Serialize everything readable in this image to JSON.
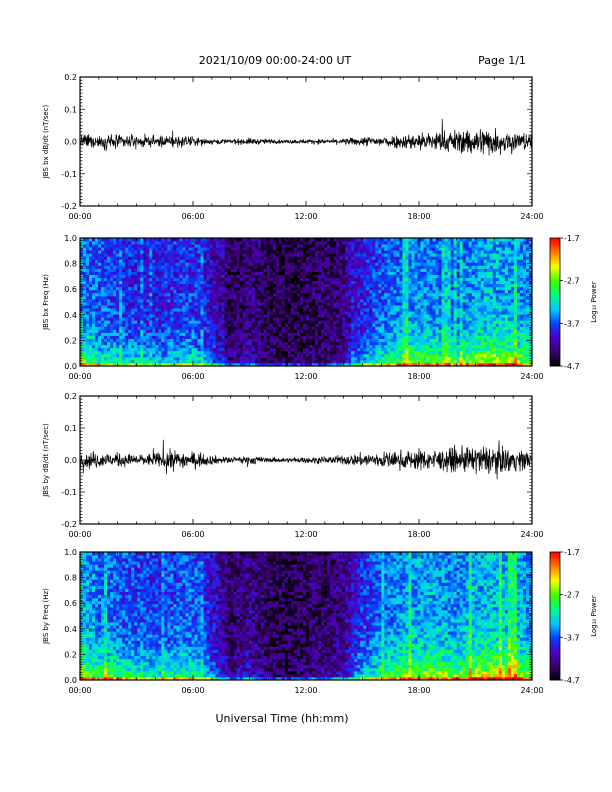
{
  "header": {
    "title": "2021/10/09  00:00-24:00 UT",
    "page": "Page 1/1"
  },
  "xlabel": "Universal Time (hh:mm)",
  "colors": {
    "trace": "#000000",
    "frame": "#000000",
    "colorscale": [
      "#000000",
      "#3a006a",
      "#4b00c8",
      "#0044ff",
      "#00c8ff",
      "#00ff80",
      "#40ff00",
      "#ffff00",
      "#ff8000",
      "#ff0000"
    ]
  },
  "chart_data": [
    {
      "type": "line",
      "ylabel": "JBS bx dB/dt (nT/sec)",
      "xlim": [
        0,
        24
      ],
      "ylim": [
        -0.2,
        0.2
      ],
      "xticks": [
        "00:00",
        "06:00",
        "12:00",
        "18:00",
        "24:00"
      ],
      "yticks": [
        "-0.2",
        "-0.1",
        "0.0",
        "0.1",
        "0.2"
      ],
      "envelope_hours": [
        0,
        1,
        2,
        3,
        4,
        5,
        6,
        7,
        8,
        9,
        10,
        11,
        12,
        13,
        14,
        15,
        16,
        17,
        18,
        19,
        20,
        21,
        22,
        23,
        24
      ],
      "envelope_amplitude": [
        0.012,
        0.012,
        0.012,
        0.01,
        0.009,
        0.012,
        0.008,
        0.005,
        0.004,
        0.006,
        0.004,
        0.003,
        0.004,
        0.004,
        0.005,
        0.008,
        0.01,
        0.012,
        0.016,
        0.018,
        0.02,
        0.026,
        0.024,
        0.018,
        0.014
      ]
    },
    {
      "type": "heatmap",
      "ylabel": "JBS bx Freq (Hz)",
      "xlim": [
        0,
        24
      ],
      "ylim": [
        0.0,
        1.0
      ],
      "xticks": [
        "00:00",
        "06:00",
        "12:00",
        "18:00",
        "24:00"
      ],
      "yticks": [
        "0.0",
        "0.2",
        "0.4",
        "0.6",
        "0.8",
        "1.0"
      ],
      "colorbar": {
        "label": "Log₁₀ Power",
        "min": -4.7,
        "max": -1.7,
        "ticks": [
          "-1.7",
          "-2.7",
          "-3.7",
          "-4.7"
        ]
      },
      "activity_hours": [
        0,
        1,
        2,
        3,
        4,
        5,
        6,
        7,
        8,
        9,
        10,
        11,
        12,
        13,
        14,
        15,
        16,
        17,
        18,
        19,
        20,
        21,
        22,
        23,
        24
      ],
      "activity_level": [
        0.8,
        0.65,
        0.6,
        0.55,
        0.5,
        0.55,
        0.6,
        0.4,
        0.1,
        0.2,
        0.08,
        0.05,
        0.08,
        0.1,
        0.2,
        0.5,
        0.65,
        0.75,
        0.8,
        0.75,
        0.7,
        0.85,
        0.9,
        0.85,
        0.75
      ]
    },
    {
      "type": "line",
      "ylabel": "JBS by dB/dt (nT/sec)",
      "xlim": [
        0,
        24
      ],
      "ylim": [
        -0.2,
        0.2
      ],
      "xticks": [
        "00:00",
        "06:00",
        "12:00",
        "18:00",
        "24:00"
      ],
      "yticks": [
        "-0.2",
        "-0.1",
        "0.0",
        "0.1",
        "0.2"
      ],
      "envelope_hours": [
        0,
        1,
        2,
        3,
        4,
        5,
        6,
        7,
        8,
        9,
        10,
        11,
        12,
        13,
        14,
        15,
        16,
        17,
        18,
        19,
        20,
        21,
        22,
        23,
        24
      ],
      "envelope_amplitude": [
        0.016,
        0.014,
        0.012,
        0.01,
        0.012,
        0.018,
        0.014,
        0.008,
        0.005,
        0.008,
        0.004,
        0.004,
        0.005,
        0.006,
        0.008,
        0.012,
        0.014,
        0.016,
        0.018,
        0.018,
        0.02,
        0.024,
        0.026,
        0.02,
        0.016
      ]
    },
    {
      "type": "heatmap",
      "ylabel": "JBS by Freq (Hz)",
      "xlim": [
        0,
        24
      ],
      "ylim": [
        0.0,
        1.0
      ],
      "xticks": [
        "00:00",
        "06:00",
        "12:00",
        "18:00",
        "24:00"
      ],
      "yticks": [
        "0.0",
        "0.2",
        "0.4",
        "0.6",
        "0.8",
        "1.0"
      ],
      "colorbar": {
        "label": "Log₁₀ Power",
        "min": -4.7,
        "max": -1.7,
        "ticks": [
          "-1.7",
          "-2.7",
          "-3.7",
          "-4.7"
        ]
      },
      "activity_hours": [
        0,
        1,
        2,
        3,
        4,
        5,
        6,
        7,
        8,
        9,
        10,
        11,
        12,
        13,
        14,
        15,
        16,
        17,
        18,
        19,
        20,
        21,
        22,
        23,
        24
      ],
      "activity_level": [
        0.9,
        0.75,
        0.7,
        0.65,
        0.6,
        0.65,
        0.7,
        0.45,
        0.12,
        0.25,
        0.1,
        0.06,
        0.1,
        0.15,
        0.25,
        0.55,
        0.7,
        0.8,
        0.85,
        0.85,
        0.8,
        0.9,
        0.95,
        0.9,
        0.8
      ]
    }
  ]
}
